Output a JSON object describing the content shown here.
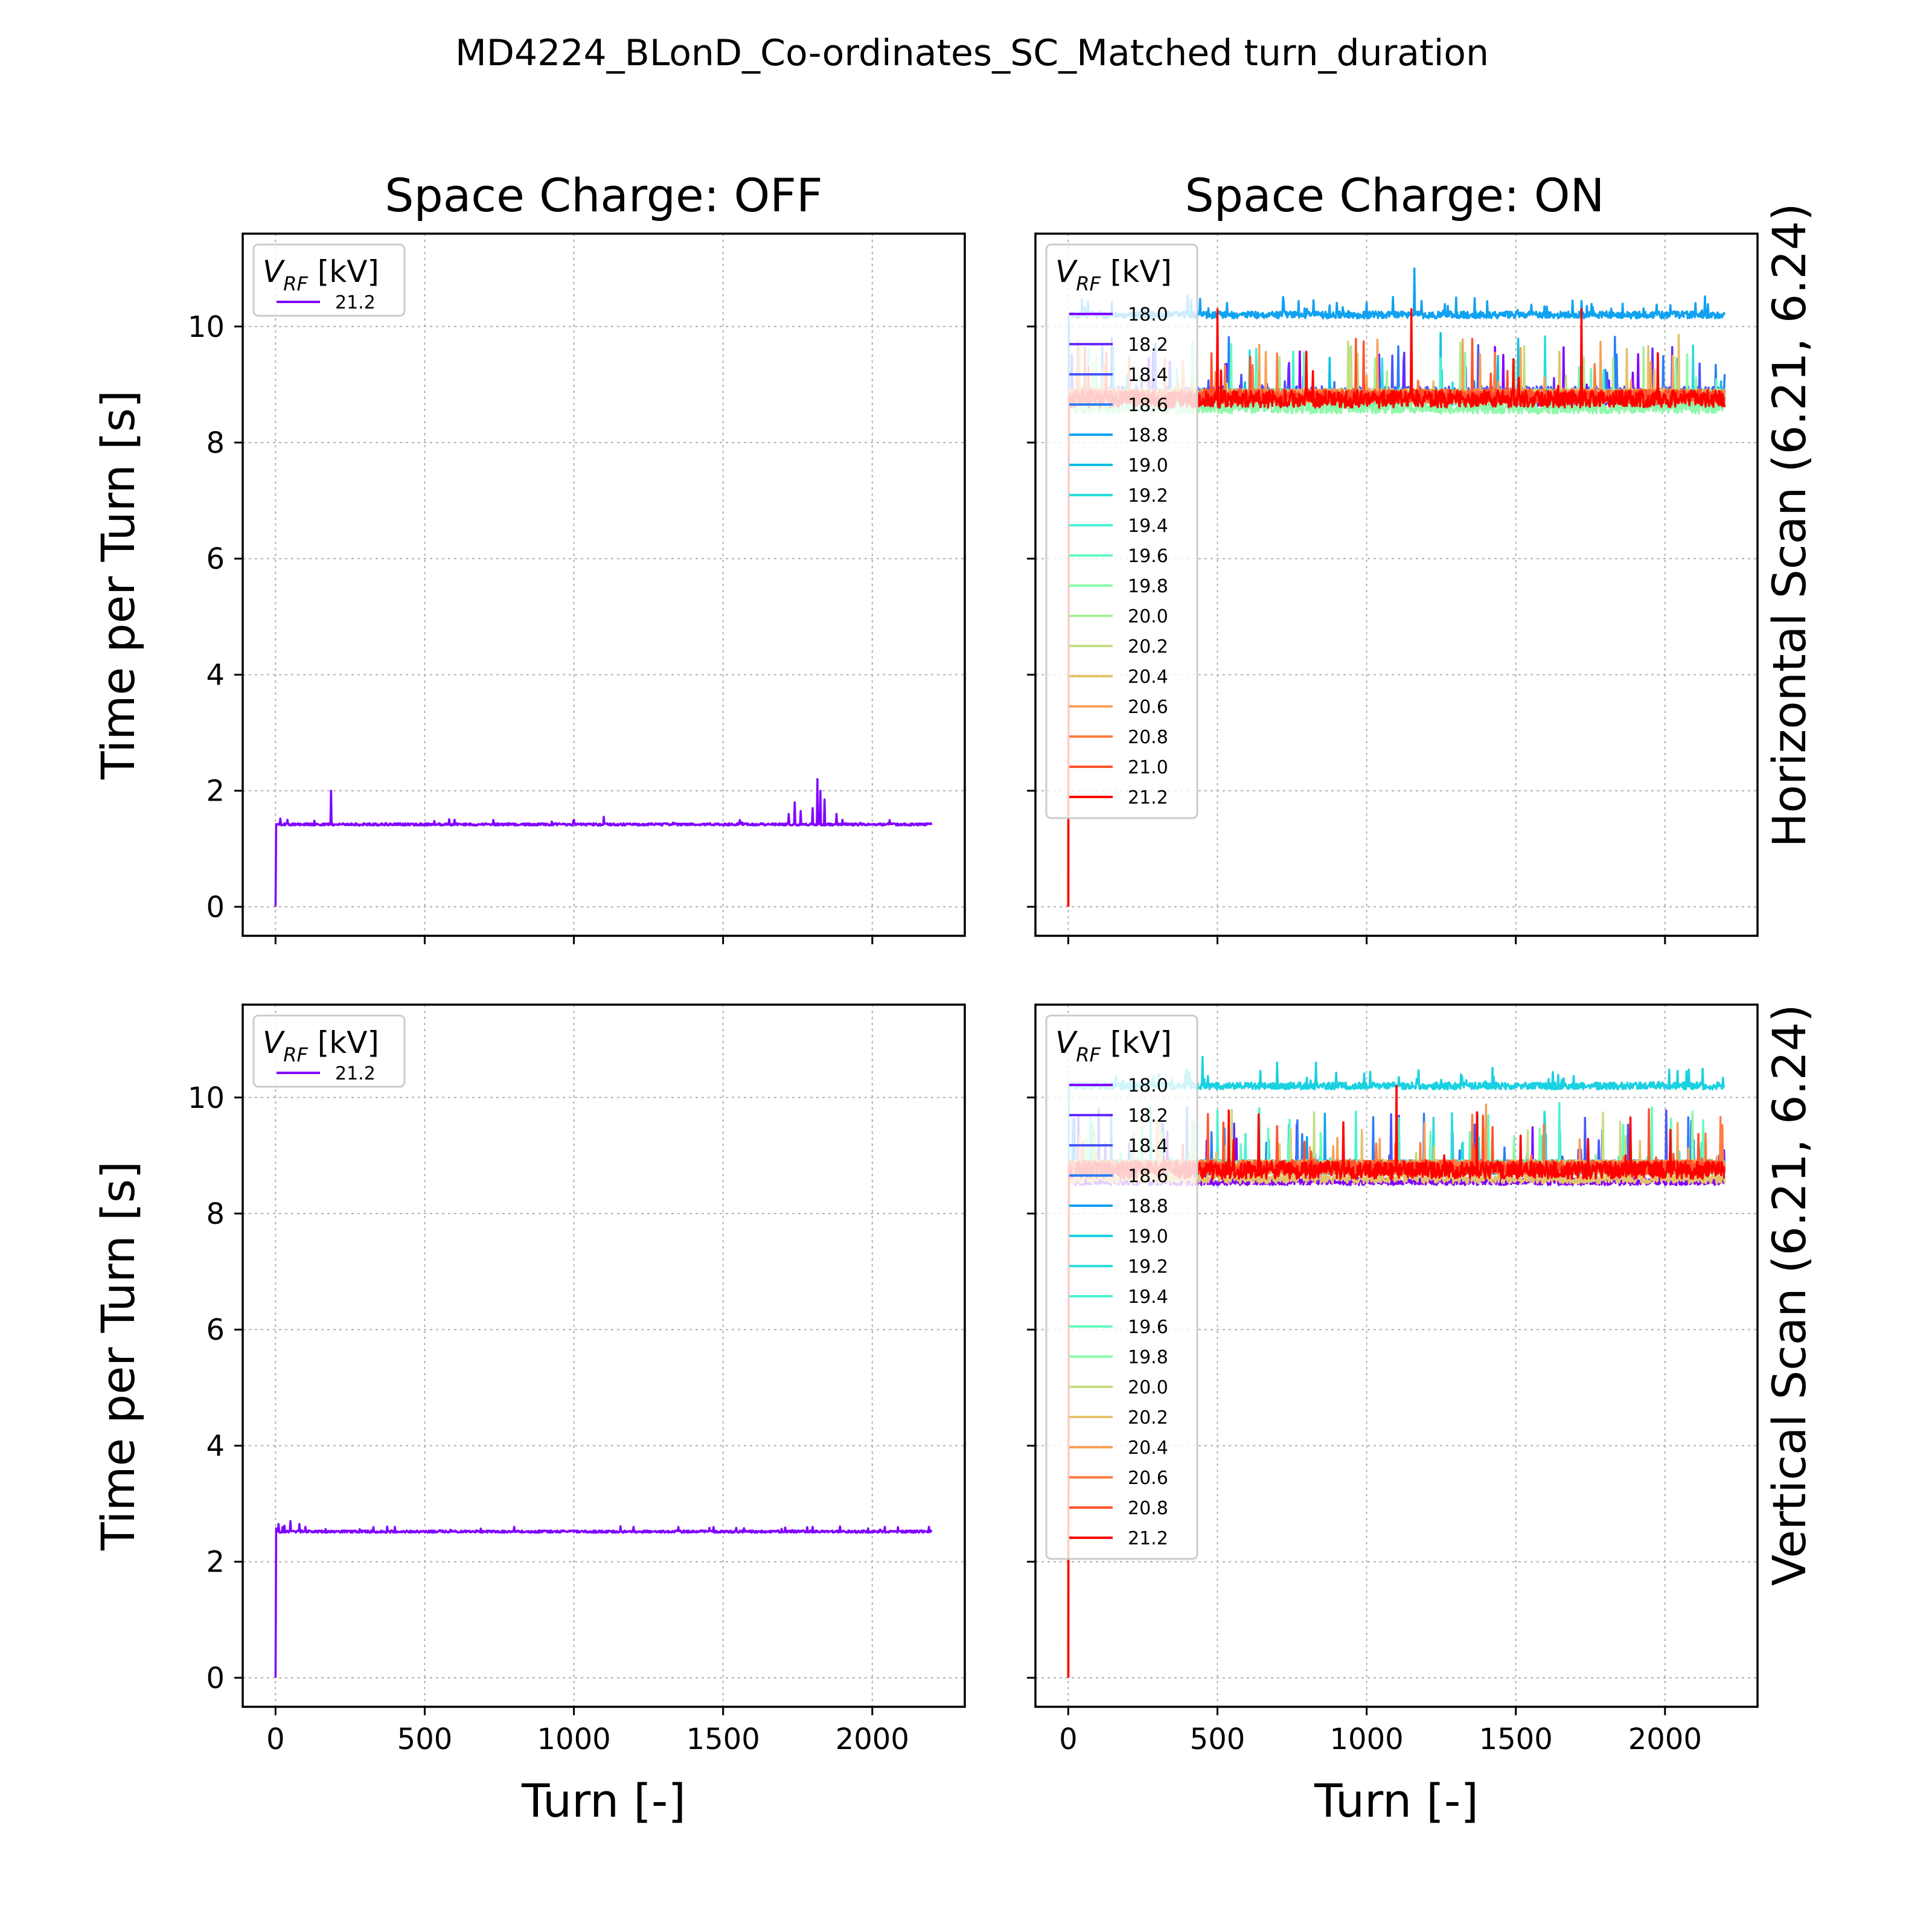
{
  "title": "MD4224_BLonD_Co-ordinates_SC_Matched turn_duration",
  "column_titles": [
    "Space Charge: OFF",
    "Space Charge: ON"
  ],
  "row_labels": [
    "Horizontal Scan (6.21, 6.24)",
    "Vertical Scan (6.21, 6.24)"
  ],
  "legend_title": "V_RF [kV]",
  "legend_title_parts": {
    "main": "V",
    "sub": "RF",
    "unit": " [kV]"
  },
  "chart_data": [
    {
      "type": "line",
      "panel": "top-left",
      "title": "Space Charge: OFF",
      "xlabel": "",
      "ylabel": "Time per Turn [s]",
      "xlim": [
        -110,
        2310
      ],
      "ylim": [
        -0.5,
        11.6
      ],
      "xticks": [
        0,
        500,
        1000,
        1500,
        2000
      ],
      "yticks": [
        0,
        2,
        4,
        6,
        8,
        10
      ],
      "xtick_labels_visible": false,
      "ytick_labels_visible": true,
      "grid": true,
      "legend_position": "top-left",
      "series": [
        {
          "name": "21.2",
          "color": "#8000ff",
          "turns": 2200,
          "baseline": 1.42,
          "noise": 0.02,
          "spike_rate": 0.015,
          "spike_height": 0.08,
          "spikes": [
            [
              15,
              1.52
            ],
            [
              40,
              1.5
            ],
            [
              185,
              2.0
            ],
            [
              600,
              1.5
            ],
            [
              1000,
              1.5
            ],
            [
              1100,
              1.55
            ],
            [
              1720,
              1.6
            ],
            [
              1740,
              1.8
            ],
            [
              1760,
              1.65
            ],
            [
              1800,
              1.7
            ],
            [
              1815,
              2.2
            ],
            [
              1825,
              2.0
            ],
            [
              1840,
              1.85
            ],
            [
              1880,
              1.6
            ]
          ]
        }
      ]
    },
    {
      "type": "line",
      "panel": "top-right",
      "title": "Space Charge: ON",
      "xlabel": "",
      "ylabel": "",
      "xlim": [
        -110,
        2310
      ],
      "ylim": [
        -0.5,
        11.6
      ],
      "xticks": [
        0,
        500,
        1000,
        1500,
        2000
      ],
      "yticks": [
        0,
        2,
        4,
        6,
        8,
        10
      ],
      "xtick_labels_visible": false,
      "ytick_labels_visible": false,
      "grid": true,
      "legend_position": "top-left",
      "series": [
        {
          "name": "18.0",
          "color": "#8000ff",
          "turns": 2200,
          "baseline": 8.75,
          "noise": 0.12,
          "spike_rate": 0.012,
          "spike_height": 1.0
        },
        {
          "name": "18.2",
          "color": "#6629fe",
          "turns": 2200,
          "baseline": 8.8,
          "noise": 0.12,
          "spike_rate": 0.012,
          "spike_height": 1.0
        },
        {
          "name": "18.4",
          "color": "#4856fb",
          "turns": 2200,
          "baseline": 8.85,
          "noise": 0.12,
          "spike_rate": 0.012,
          "spike_height": 1.0
        },
        {
          "name": "18.6",
          "color": "#2c7ef7",
          "turns": 2200,
          "baseline": 8.8,
          "noise": 0.12,
          "spike_rate": 0.012,
          "spike_height": 1.0
        },
        {
          "name": "18.8",
          "color": "#10a2f0",
          "turns": 2200,
          "baseline": 10.2,
          "noise": 0.06,
          "spike_rate": 0.05,
          "spike_height": 0.3,
          "spikes": [
            [
              1160,
              11.0
            ],
            [
              1300,
              10.5
            ]
          ]
        },
        {
          "name": "19.0",
          "color": "#0cc0e6",
          "turns": 2200,
          "baseline": 8.8,
          "noise": 0.12,
          "spike_rate": 0.012,
          "spike_height": 1.0
        },
        {
          "name": "19.2",
          "color": "#2adddd",
          "turns": 2200,
          "baseline": 8.8,
          "noise": 0.12,
          "spike_rate": 0.012,
          "spike_height": 1.0
        },
        {
          "name": "19.4",
          "color": "#48f3cf",
          "turns": 2200,
          "baseline": 8.8,
          "noise": 0.12,
          "spike_rate": 0.012,
          "spike_height": 1.0
        },
        {
          "name": "19.6",
          "color": "#66fcc0",
          "turns": 2200,
          "baseline": 8.75,
          "noise": 0.12,
          "spike_rate": 0.012,
          "spike_height": 1.0
        },
        {
          "name": "19.8",
          "color": "#8cfaa9",
          "turns": 2200,
          "baseline": 8.6,
          "noise": 0.1,
          "spike_rate": 0.012,
          "spike_height": 1.0
        },
        {
          "name": "20.0",
          "color": "#a9ef98",
          "turns": 2200,
          "baseline": 8.8,
          "noise": 0.12,
          "spike_rate": 0.012,
          "spike_height": 1.0
        },
        {
          "name": "20.2",
          "color": "#c6dd84",
          "turns": 2200,
          "baseline": 8.8,
          "noise": 0.12,
          "spike_rate": 0.012,
          "spike_height": 1.0
        },
        {
          "name": "20.4",
          "color": "#e4c26b",
          "turns": 2200,
          "baseline": 8.8,
          "noise": 0.12,
          "spike_rate": 0.012,
          "spike_height": 1.0
        },
        {
          "name": "20.6",
          "color": "#f8a156",
          "turns": 2200,
          "baseline": 8.8,
          "noise": 0.12,
          "spike_rate": 0.012,
          "spike_height": 1.0
        },
        {
          "name": "20.8",
          "color": "#ff7c42",
          "turns": 2200,
          "baseline": 8.8,
          "noise": 0.12,
          "spike_rate": 0.012,
          "spike_height": 1.0
        },
        {
          "name": "21.0",
          "color": "#ff532c",
          "turns": 2200,
          "baseline": 8.8,
          "noise": 0.12,
          "spike_rate": 0.012,
          "spike_height": 1.0
        },
        {
          "name": "21.2",
          "color": "#ff0000",
          "turns": 2200,
          "baseline": 8.75,
          "noise": 0.15,
          "spike_rate": 0.012,
          "spike_height": 1.0,
          "spikes": [
            [
              500,
              10.3
            ],
            [
              1150,
              10.3
            ],
            [
              1720,
              10.3
            ]
          ]
        }
      ]
    },
    {
      "type": "line",
      "panel": "bottom-left",
      "title": "",
      "xlabel": "Turn [-]",
      "ylabel": "Time per Turn  [s]",
      "xlim": [
        -110,
        2310
      ],
      "ylim": [
        -0.5,
        11.6
      ],
      "xticks": [
        0,
        500,
        1000,
        1500,
        2000
      ],
      "yticks": [
        0,
        2,
        4,
        6,
        8,
        10
      ],
      "xtick_labels_visible": true,
      "ytick_labels_visible": true,
      "grid": true,
      "legend_position": "top-left",
      "series": [
        {
          "name": "21.2",
          "color": "#8000ff",
          "turns": 2200,
          "baseline": 2.52,
          "noise": 0.02,
          "spike_rate": 0.03,
          "spike_height": 0.08,
          "spikes": [
            [
              10,
              2.65
            ],
            [
              30,
              2.62
            ],
            [
              50,
              2.7
            ],
            [
              80,
              2.65
            ],
            [
              100,
              2.6
            ],
            [
              400,
              2.6
            ],
            [
              800,
              2.6
            ],
            [
              1200,
              2.6
            ],
            [
              1800,
              2.6
            ],
            [
              2190,
              2.6
            ]
          ]
        }
      ]
    },
    {
      "type": "line",
      "panel": "bottom-right",
      "title": "",
      "xlabel": "Turn [-]",
      "ylabel": "",
      "xlim": [
        -110,
        2310
      ],
      "ylim": [
        -0.5,
        11.6
      ],
      "xticks": [
        0,
        500,
        1000,
        1500,
        2000
      ],
      "yticks": [
        0,
        2,
        4,
        6,
        8,
        10
      ],
      "xtick_labels_visible": true,
      "ytick_labels_visible": false,
      "grid": true,
      "legend_position": "top-left",
      "series": [
        {
          "name": "18.0",
          "color": "#8000ff",
          "turns": 2200,
          "baseline": 8.55,
          "noise": 0.06,
          "spike_rate": 0.012,
          "spike_height": 1.0
        },
        {
          "name": "18.2",
          "color": "#6629fe",
          "turns": 2200,
          "baseline": 8.8,
          "noise": 0.12,
          "spike_rate": 0.012,
          "spike_height": 1.0
        },
        {
          "name": "18.4",
          "color": "#4856fb",
          "turns": 2200,
          "baseline": 8.8,
          "noise": 0.12,
          "spike_rate": 0.012,
          "spike_height": 1.0
        },
        {
          "name": "18.6",
          "color": "#2c7ef7",
          "turns": 2200,
          "baseline": 8.8,
          "noise": 0.12,
          "spike_rate": 0.012,
          "spike_height": 1.0
        },
        {
          "name": "18.8",
          "color": "#10a2f0",
          "turns": 2200,
          "baseline": 8.8,
          "noise": 0.12,
          "spike_rate": 0.012,
          "spike_height": 1.0
        },
        {
          "name": "19.0",
          "color": "#1ad1e2",
          "turns": 2200,
          "baseline": 10.2,
          "noise": 0.06,
          "spike_rate": 0.05,
          "spike_height": 0.3,
          "spikes": [
            [
              450,
              10.7
            ],
            [
              700,
              10.6
            ],
            [
              830,
              10.6
            ]
          ]
        },
        {
          "name": "19.2",
          "color": "#2adddd",
          "turns": 2200,
          "baseline": 8.8,
          "noise": 0.12,
          "spike_rate": 0.012,
          "spike_height": 1.0
        },
        {
          "name": "19.4",
          "color": "#48f3cf",
          "turns": 2200,
          "baseline": 8.8,
          "noise": 0.12,
          "spike_rate": 0.012,
          "spike_height": 1.0
        },
        {
          "name": "19.6",
          "color": "#66fcc0",
          "turns": 2200,
          "baseline": 8.8,
          "noise": 0.12,
          "spike_rate": 0.012,
          "spike_height": 1.0
        },
        {
          "name": "19.8",
          "color": "#8cfaa9",
          "turns": 2200,
          "baseline": 8.8,
          "noise": 0.12,
          "spike_rate": 0.012,
          "spike_height": 1.0
        },
        {
          "name": "20.0",
          "color": "#c6dd84",
          "turns": 2200,
          "baseline": 8.8,
          "noise": 0.12,
          "spike_rate": 0.012,
          "spike_height": 1.0
        },
        {
          "name": "20.2",
          "color": "#e4c26b",
          "turns": 2200,
          "baseline": 8.6,
          "noise": 0.08,
          "spike_rate": 0.012,
          "spike_height": 1.0
        },
        {
          "name": "20.4",
          "color": "#f8a156",
          "turns": 2200,
          "baseline": 8.8,
          "noise": 0.12,
          "spike_rate": 0.012,
          "spike_height": 1.0
        },
        {
          "name": "20.6",
          "color": "#ff7c42",
          "turns": 2200,
          "baseline": 8.8,
          "noise": 0.12,
          "spike_rate": 0.012,
          "spike_height": 1.0
        },
        {
          "name": "20.8",
          "color": "#ff532c",
          "turns": 2200,
          "baseline": 8.8,
          "noise": 0.12,
          "spike_rate": 0.012,
          "spike_height": 1.0
        },
        {
          "name": "21.2",
          "color": "#ff0000",
          "turns": 2200,
          "baseline": 8.75,
          "noise": 0.15,
          "spike_rate": 0.012,
          "spike_height": 1.0,
          "spikes": [
            [
              1100,
              10.2
            ]
          ]
        }
      ]
    }
  ]
}
